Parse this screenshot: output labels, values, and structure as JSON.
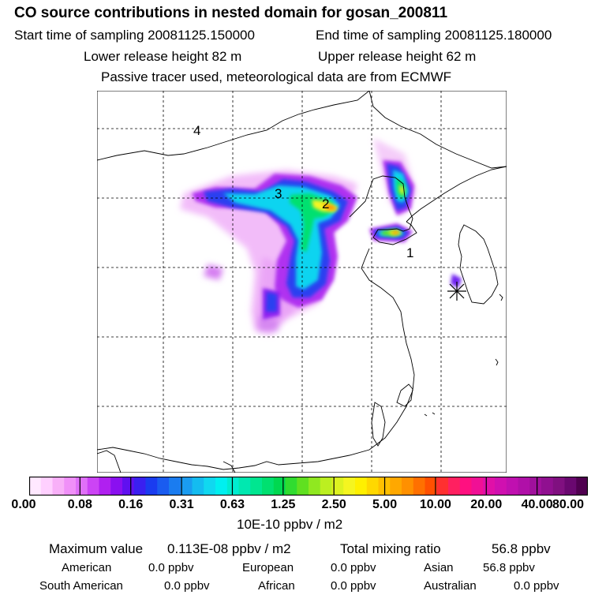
{
  "header": {
    "title": "CO  source contributions in nested domain for gosan_200811",
    "start_time": "Start time of sampling 20081125.150000",
    "end_time": "End time of sampling 20081125.180000",
    "lower_height": "Lower release height   82 m",
    "upper_height": "Upper release height   62 m",
    "tracer_note": "Passive tracer used, meteorological data are from ECMWF"
  },
  "map": {
    "region_labels": [
      "1",
      "2",
      "3",
      "4"
    ],
    "receptor_marker": "asterisk-icon"
  },
  "colorbar": {
    "tick_labels": [
      "0.00",
      "0.08",
      "0.16",
      "0.31",
      "0.63",
      "1.25",
      "2.50",
      "5.00",
      "10.00",
      "20.00",
      "40.00",
      "80.00"
    ],
    "unit": "10E-10 ppbv / m2",
    "colors": [
      "#ffe8ff",
      "#ffd0ff",
      "#f8b0f8",
      "#f090f8",
      "#e070f8",
      "#cc44f5",
      "#b020f0",
      "#8a10f0",
      "#6010f0",
      "#3a20f0",
      "#1a3cf0",
      "#1a5cf0",
      "#1a7cf0",
      "#1a9cf0",
      "#14bcf0",
      "#10d8f0",
      "#00f0f0",
      "#00ecd0",
      "#00e8b0",
      "#00e690",
      "#00e070",
      "#00d850",
      "#30dc30",
      "#60e020",
      "#90e820",
      "#bcef20",
      "#ddf220",
      "#f5f520",
      "#fff000",
      "#ffd800",
      "#ffc000",
      "#ffa800",
      "#ff9000",
      "#ff7000",
      "#ff5000",
      "#ff3030",
      "#ff2060",
      "#ff1080",
      "#f01095",
      "#e010a8",
      "#d010b0",
      "#c010b0",
      "#b010a8",
      "#a0109c",
      "#901090",
      "#801080",
      "#6a0870",
      "#500050"
    ]
  },
  "summary": {
    "max_label": "Maximum value",
    "max_value": "0.113E-08 ppbv / m2",
    "total_label": "Total mixing ratio",
    "total_value": "56.8 ppbv",
    "regions": [
      {
        "name": "American",
        "value": "0.0 ppbv"
      },
      {
        "name": "European",
        "value": "0.0 ppbv"
      },
      {
        "name": "Asian",
        "value": "56.8 ppbv"
      },
      {
        "name": "South American",
        "value": "0.0 ppbv"
      },
      {
        "name": "African",
        "value": "0.0 ppbv"
      },
      {
        "name": "Australian",
        "value": "0.0 ppbv"
      }
    ]
  }
}
